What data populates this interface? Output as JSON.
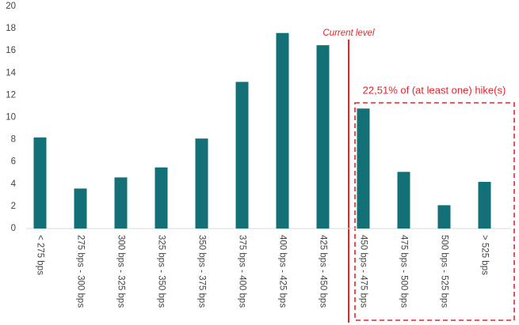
{
  "chart_data": {
    "type": "bar",
    "categories": [
      "< 275 bps",
      "275 bps - 300 bps",
      "300 bps - 325 bps",
      "325 bps - 350 bps",
      "350 bps - 375 bps",
      "375 bps - 400 bps",
      "400 bps - 425 bps",
      "425 bps - 450 bps",
      "450 bps - 475 bps",
      "475 bps - 500 bps",
      "500 bps - 525 bps",
      "> 525 bps"
    ],
    "values": [
      8.2,
      3.6,
      4.6,
      5.5,
      8.1,
      13.2,
      17.6,
      16.5,
      10.8,
      5.1,
      2.1,
      4.2
    ],
    "color": "#137077",
    "ylim": [
      0,
      20
    ],
    "yticks": [
      0,
      2,
      4,
      6,
      8,
      10,
      12,
      14,
      16,
      18,
      20
    ],
    "grid": false,
    "annotations": [
      "Current level",
      "22,51% of (at least one) hike(s)"
    ]
  }
}
